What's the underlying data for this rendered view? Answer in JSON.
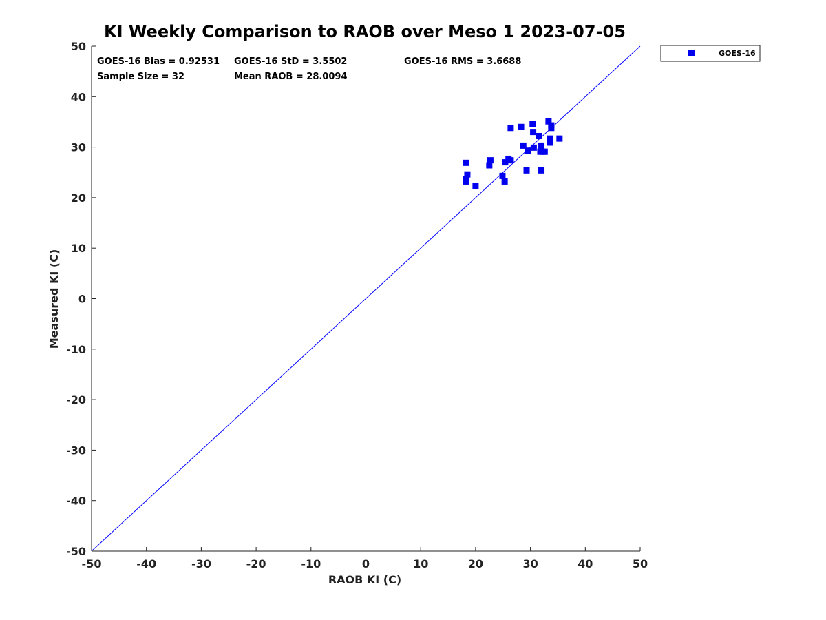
{
  "chart_data": {
    "type": "scatter",
    "title": "KI Weekly Comparison to RAOB over Meso 1 2023-07-05",
    "xlabel": "RAOB KI (C)",
    "ylabel": "Measured KI (C)",
    "xlim": [
      -50,
      50
    ],
    "ylim": [
      -50,
      50
    ],
    "xticks": [
      "-50",
      "-40",
      "-30",
      "-20",
      "-10",
      "0",
      "10",
      "20",
      "30",
      "40",
      "50"
    ],
    "yticks": [
      "50",
      "40",
      "30",
      "20",
      "10",
      "0",
      "-10",
      "-20",
      "-30",
      "-40",
      "-50"
    ],
    "xtick_values": [
      -50,
      -40,
      -30,
      -20,
      -10,
      0,
      10,
      20,
      30,
      40,
      50
    ],
    "ytick_values": [
      50,
      40,
      30,
      20,
      10,
      0,
      -10,
      -20,
      -30,
      -40,
      -50
    ],
    "reference_line": {
      "from": [
        -50,
        -50
      ],
      "to": [
        50,
        50
      ],
      "color": "#0000ff"
    },
    "legend": {
      "entries": [
        "GOES-16"
      ],
      "position": "top-right"
    },
    "stats": {
      "bias": "GOES-16 Bias = 0.92531",
      "std": "GOES-16 StD = 3.5502",
      "rms": "GOES-16 RMS = 3.6688",
      "sample_size": "Sample Size = 32",
      "mean_raob": "Mean RAOB = 28.0094"
    },
    "series": [
      {
        "name": "GOES-16",
        "color": "#0000ee",
        "marker": "square",
        "points": [
          [
            18.2,
            26.9
          ],
          [
            18.5,
            24.6
          ],
          [
            18.2,
            23.7
          ],
          [
            18.2,
            23.2
          ],
          [
            20.0,
            22.3
          ],
          [
            22.5,
            26.4
          ],
          [
            22.7,
            27.4
          ],
          [
            24.9,
            24.3
          ],
          [
            25.3,
            23.2
          ],
          [
            25.4,
            27.0
          ],
          [
            26.0,
            27.7
          ],
          [
            26.4,
            27.4
          ],
          [
            26.4,
            33.8
          ],
          [
            28.3,
            34.0
          ],
          [
            28.7,
            30.3
          ],
          [
            29.3,
            25.4
          ],
          [
            29.5,
            29.3
          ],
          [
            30.4,
            34.6
          ],
          [
            30.5,
            33.0
          ],
          [
            30.6,
            29.9
          ],
          [
            31.6,
            32.2
          ],
          [
            31.8,
            29.1
          ],
          [
            32.0,
            25.4
          ],
          [
            32.0,
            30.3
          ],
          [
            32.6,
            29.1
          ],
          [
            33.3,
            35.1
          ],
          [
            33.5,
            31.7
          ],
          [
            33.5,
            30.9
          ],
          [
            33.8,
            34.3
          ],
          [
            33.8,
            33.8
          ],
          [
            35.3,
            31.7
          ],
          [
            32.3,
            29.1
          ]
        ]
      }
    ]
  }
}
